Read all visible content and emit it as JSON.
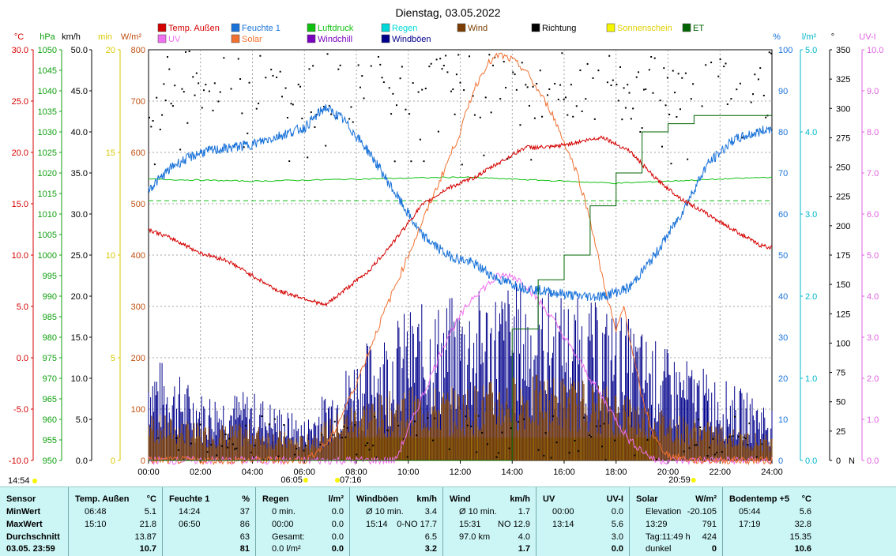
{
  "title": "Dienstag, 03.05.2022",
  "legend": [
    {
      "label": "Temp. Außen",
      "color": "#d40000"
    },
    {
      "label": "Feuchte 1",
      "color": "#1a73d9"
    },
    {
      "label": "Luftdruck",
      "color": "#10c010"
    },
    {
      "label": "Regen",
      "color": "#00d8d8"
    },
    {
      "label": "Wind",
      "color": "#7a3c00"
    },
    {
      "label": "Richtung",
      "color": "#000000"
    },
    {
      "label": "Sonnenschein",
      "color": "#f5f500"
    },
    {
      "label": "ET",
      "color": "#006400"
    },
    {
      "label": "UV",
      "color": "#f070f0"
    },
    {
      "label": "Solar",
      "color": "#f07030"
    },
    {
      "label": "Windchill",
      "color": "#7a00c0"
    },
    {
      "label": "Windböen",
      "color": "#00008b"
    }
  ],
  "axis_units": {
    "temp": "°C",
    "press": "hPa",
    "wind": "km/h",
    "sun": "min",
    "solar": "W/m²",
    "hum": "%",
    "rain": "l/m²",
    "dir": "°",
    "uv": "UV-I"
  },
  "axis_colors": {
    "temp": "#d40000",
    "press": "#10a010",
    "wind": "#000000",
    "sun": "#d8c800",
    "solar": "#c05010",
    "hum": "#1a73d9",
    "rain": "#00b8c8",
    "dir": "#000000",
    "uv": "#e060e0"
  },
  "axes": {
    "temp": [
      "30.0",
      "25.0",
      "20.0",
      "15.0",
      "10.0",
      "5.0",
      "0.0",
      "-5.0",
      "-10.0"
    ],
    "press": [
      "1050",
      "1045",
      "1040",
      "1035",
      "1030",
      "1025",
      "1020",
      "1015",
      "1010",
      "1005",
      "1000",
      "995",
      "990",
      "985",
      "980",
      "975",
      "970",
      "965",
      "960",
      "955",
      "950"
    ],
    "wind": [
      "50.0",
      "45.0",
      "40.0",
      "35.0",
      "30.0",
      "25.0",
      "20.0",
      "15.0",
      "10.0",
      "5.0",
      "0.0"
    ],
    "sun": [
      "20",
      "15",
      "10",
      "5",
      "0"
    ],
    "solar": [
      "800",
      "700",
      "600",
      "500",
      "400",
      "300",
      "200",
      "100",
      "0"
    ],
    "hum": [
      "100",
      "90",
      "80",
      "70",
      "60",
      "50",
      "40",
      "30",
      "20",
      "10",
      "0"
    ],
    "rain": [
      "5.0",
      "4.0",
      "3.0",
      "2.0",
      "1.0",
      "0.0"
    ],
    "dir": [
      "350",
      "325",
      "300",
      "275",
      "250",
      "225",
      "200",
      "175",
      "150",
      "125",
      "100",
      "75",
      "50",
      "25",
      "0"
    ],
    "dir_zero_suffix": "N",
    "uv": [
      "10.0",
      "9.0",
      "8.0",
      "7.0",
      "6.0",
      "5.0",
      "4.0",
      "3.0",
      "2.0",
      "1.0",
      "0.0"
    ]
  },
  "time_ticks": [
    "00:00",
    "02:00",
    "04:00",
    "06:00",
    "08:00",
    "10:00",
    "12:00",
    "14:00",
    "16:00",
    "18:00",
    "20:00",
    "22:00",
    "24:00"
  ],
  "markers": {
    "sunshine_total": "14:54",
    "sunrise": "06:05",
    "civil": "07:16",
    "sunset": "20:59"
  },
  "chart_data": {
    "type": "line",
    "x_range_hours": [
      0,
      24
    ],
    "series": [
      {
        "name": "Temp. Außen",
        "unit": "°C",
        "range": [
          -10,
          30
        ],
        "x": [
          0,
          1,
          2,
          3,
          4,
          5,
          6,
          6.8,
          7.5,
          8.5,
          9.5,
          10.5,
          11.5,
          12.5,
          13.5,
          14.5,
          15.5,
          16.5,
          17.5,
          18,
          18.5,
          19.5,
          20.5,
          21.5,
          22.5,
          23.5,
          24
        ],
        "values": [
          12.5,
          11.5,
          10.2,
          9.5,
          8.0,
          6.5,
          5.8,
          5.1,
          6.5,
          8.5,
          11.5,
          14.8,
          16.5,
          17.5,
          19.0,
          20.5,
          20.5,
          21.0,
          21.5,
          20.8,
          20.2,
          17.5,
          15.5,
          14.0,
          12.5,
          11.0,
          10.7
        ]
      },
      {
        "name": "Feuchte 1",
        "unit": "%",
        "range": [
          0,
          100
        ],
        "x": [
          0,
          1,
          2,
          3,
          4,
          5,
          6,
          6.8,
          7.5,
          8.5,
          9.5,
          10.5,
          11.5,
          12.5,
          13.5,
          14.5,
          15.5,
          16.5,
          17.5,
          18.5,
          19.5,
          20.5,
          21.5,
          22.5,
          23.5,
          24
        ],
        "values": [
          66,
          72,
          75,
          76,
          77,
          79,
          81,
          86,
          83,
          75,
          65,
          55,
          50,
          48,
          44,
          42,
          41,
          40,
          40,
          42,
          50,
          60,
          72,
          78,
          80,
          81
        ]
      },
      {
        "name": "Luftdruck",
        "unit": "hPa",
        "range": [
          950,
          1050
        ],
        "x": [
          0,
          4,
          8,
          12,
          16,
          18,
          20,
          22,
          24
        ],
        "values": [
          1018.5,
          1018.0,
          1018.5,
          1019.0,
          1018.0,
          1017.5,
          1018.0,
          1018.5,
          1019.0
        ]
      },
      {
        "name": "Solar",
        "unit": "W/m²",
        "range": [
          0,
          800
        ],
        "x": [
          0,
          6.05,
          7,
          8,
          9,
          10,
          11,
          12,
          12.5,
          13,
          13.5,
          14,
          14.5,
          15,
          15.5,
          16,
          16.5,
          17,
          17.5,
          18,
          18.3,
          18.6,
          19,
          19.5,
          20,
          20.98
        ],
        "values": [
          0,
          0,
          40,
          150,
          280,
          400,
          520,
          640,
          720,
          770,
          790,
          780,
          760,
          720,
          680,
          620,
          560,
          470,
          350,
          250,
          300,
          220,
          120,
          40,
          10,
          0
        ]
      },
      {
        "name": "UV",
        "unit": "UV-I",
        "range": [
          0,
          10
        ],
        "x": [
          0,
          9.5,
          10.5,
          11.5,
          12.5,
          13.5,
          14,
          14.5,
          15.5,
          16.5,
          17.5,
          18.5,
          19.5,
          24
        ],
        "values": [
          0,
          0,
          1.5,
          3.0,
          4.0,
          4.5,
          4.5,
          4.3,
          3.5,
          2.5,
          1.5,
          0.5,
          0,
          0
        ]
      },
      {
        "name": "ET",
        "unit": "l/m²",
        "range": [
          0,
          5
        ],
        "x": [
          0,
          13,
          14,
          15,
          16,
          17,
          18,
          19,
          20,
          21,
          24
        ],
        "values": [
          0,
          0,
          1.6,
          2.2,
          2.5,
          3.1,
          3.5,
          4.0,
          4.1,
          4.2,
          4.2
        ]
      },
      {
        "name": "Wind",
        "unit": "km/h",
        "range": [
          0,
          50
        ],
        "x": [
          0,
          2,
          4,
          6,
          8,
          10,
          12,
          14,
          16,
          18,
          20,
          22,
          24
        ],
        "values": [
          4,
          3,
          3,
          2,
          5,
          6,
          6,
          7,
          7,
          6,
          4,
          3,
          2
        ]
      },
      {
        "name": "Windböen",
        "unit": "km/h",
        "range": [
          0,
          50
        ],
        "x": [
          0,
          2,
          4,
          6,
          8,
          10,
          12,
          14,
          16,
          18,
          20,
          22,
          24
        ],
        "values": [
          8,
          5,
          5,
          3,
          8,
          11,
          12,
          13,
          12,
          11,
          8,
          6,
          4
        ]
      },
      {
        "name": "Sonnenschein",
        "unit": "min",
        "range": [
          0,
          20
        ],
        "x": [
          0,
          7.5,
          8,
          19.5,
          20,
          24
        ],
        "values": [
          0,
          0,
          1,
          1,
          0,
          0
        ]
      }
    ]
  },
  "summary": {
    "rows": [
      "Sensor",
      "MinWert",
      "MaxWert",
      "Durchschnitt",
      "03.05. 23:59"
    ],
    "blocks": [
      {
        "title": "Temp. Außen",
        "unit": "°C",
        "cells": [
          [
            "06:48",
            "5.1"
          ],
          [
            "15:10",
            "21.8"
          ],
          [
            "",
            "13.87"
          ],
          [
            "",
            "10.7"
          ]
        ]
      },
      {
        "title": "Feuchte 1",
        "unit": "%",
        "cells": [
          [
            "14:24",
            "37"
          ],
          [
            "06:50",
            "86"
          ],
          [
            "",
            "63"
          ],
          [
            "",
            "81"
          ]
        ]
      },
      {
        "title": "Regen",
        "unit": "l/m²",
        "cells": [
          [
            "0 min.",
            "0.0"
          ],
          [
            "00:00",
            "0.0"
          ],
          [
            "Gesamt:",
            "0.0"
          ],
          [
            "0.0 l/m²",
            "0.0"
          ]
        ]
      },
      {
        "title": "Windböen",
        "unit": "km/h",
        "cells": [
          [
            "Ø 10 min.",
            "3.4"
          ],
          [
            "15:14",
            "0-NO 17.7"
          ],
          [
            "",
            "6.5"
          ],
          [
            "",
            "3.2"
          ]
        ]
      },
      {
        "title": "Wind",
        "unit": "km/h",
        "cells": [
          [
            "Ø 10 min.",
            "1.7"
          ],
          [
            "15:31",
            "NO 12.9"
          ],
          [
            "97.0 km",
            "4.0"
          ],
          [
            "",
            "1.7"
          ]
        ]
      },
      {
        "title": "UV",
        "unit": "UV-I",
        "cells": [
          [
            "00:00",
            "0.0"
          ],
          [
            "13:14",
            "5.6"
          ],
          [
            "",
            "3.0"
          ],
          [
            "",
            "0.0"
          ]
        ]
      },
      {
        "title": "Solar",
        "unit": "W/m²",
        "cells": [
          [
            "Elevation",
            "-20.105"
          ],
          [
            "13:29",
            "791"
          ],
          [
            "Tag:11:49 h",
            "424"
          ],
          [
            "dunkel",
            "0"
          ]
        ]
      },
      {
        "title": "Bodentemp +5",
        "unit": "°C",
        "cells": [
          [
            "05:44",
            "5.6"
          ],
          [
            "17:19",
            "32.8"
          ],
          [
            "",
            "15.35"
          ],
          [
            "",
            "10.6"
          ]
        ]
      }
    ]
  }
}
